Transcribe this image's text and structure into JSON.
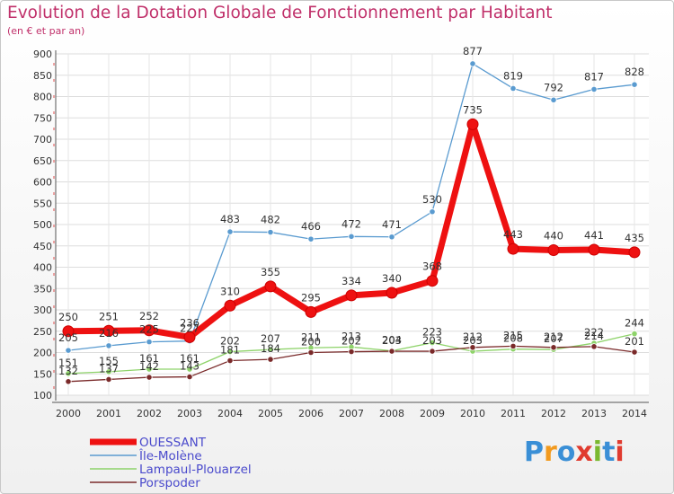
{
  "header": {
    "title": "Evolution de la Dotation Globale de Fonctionnement par Habitant",
    "subtitle": "(en € et par an)"
  },
  "logo": {
    "letters": [
      "P",
      "r",
      "o",
      "x",
      "i",
      "t",
      "i"
    ],
    "colors": [
      "#3a8fd6",
      "#f29a1e",
      "#3a8fd6",
      "#e03b2f",
      "#7ab82f",
      "#3a8fd6",
      "#e03b2f"
    ]
  },
  "chart_data": {
    "type": "line",
    "title": "Evolution de la Dotation Globale de Fonctionnement par Habitant",
    "subtitle": "(en € et par an)",
    "xlabel": "",
    "ylabel": "",
    "x": [
      "2000",
      "2001",
      "2002",
      "2003",
      "2004",
      "2005",
      "2006",
      "2007",
      "2008",
      "2009",
      "2010",
      "2011",
      "2012",
      "2013",
      "2014"
    ],
    "ylim": [
      100,
      900
    ],
    "yticks": [
      "100",
      "150",
      "200",
      "250",
      "300",
      "350",
      "400",
      "450",
      "500",
      "550",
      "600",
      "650",
      "700",
      "750",
      "800",
      "850",
      "900"
    ],
    "grid": true,
    "legend_position": "bottom-left",
    "series": [
      {
        "name": "OUESSANT",
        "color": "#ee1111",
        "values": [
          250,
          251,
          252,
          236,
          310,
          355,
          295,
          334,
          340,
          368,
          735,
          443,
          440,
          441,
          435
        ],
        "labels": [
          "250",
          "251",
          "252",
          "236",
          "310",
          "355",
          "295",
          "334",
          "340",
          "368",
          "735",
          "443",
          "440",
          "441",
          "435"
        ]
      },
      {
        "name": "Île-Molène",
        "color": "#5a9bd0",
        "values": [
          205,
          216,
          225,
          227,
          483,
          482,
          466,
          472,
          471,
          530,
          877,
          819,
          792,
          817,
          828
        ],
        "labels": [
          "205",
          "216",
          "225",
          "227",
          "483",
          "482",
          "466",
          "472",
          "471",
          "530",
          "877",
          "819",
          "792",
          "817",
          "828"
        ]
      },
      {
        "name": "Lampaul-Plouarzel",
        "color": "#8ed36a",
        "values": [
          151,
          155,
          161,
          161,
          202,
          207,
          211,
          213,
          204,
          223,
          203,
          208,
          207,
          222,
          244
        ],
        "labels": [
          "151",
          "155",
          "161",
          "161",
          "202",
          "207",
          "211",
          "213",
          "204",
          "223",
          "203",
          "208",
          "207",
          "222",
          "244"
        ]
      },
      {
        "name": "Porspoder",
        "color": "#7a2a2a",
        "values": [
          132,
          137,
          142,
          143,
          181,
          184,
          200,
          202,
          203,
          203,
          212,
          215,
          212,
          214,
          201
        ],
        "labels": [
          "132",
          "137",
          "142",
          "143",
          "181",
          "184",
          "200",
          "202",
          "203",
          "203",
          "212",
          "215",
          "212",
          "214",
          "201"
        ]
      }
    ]
  }
}
